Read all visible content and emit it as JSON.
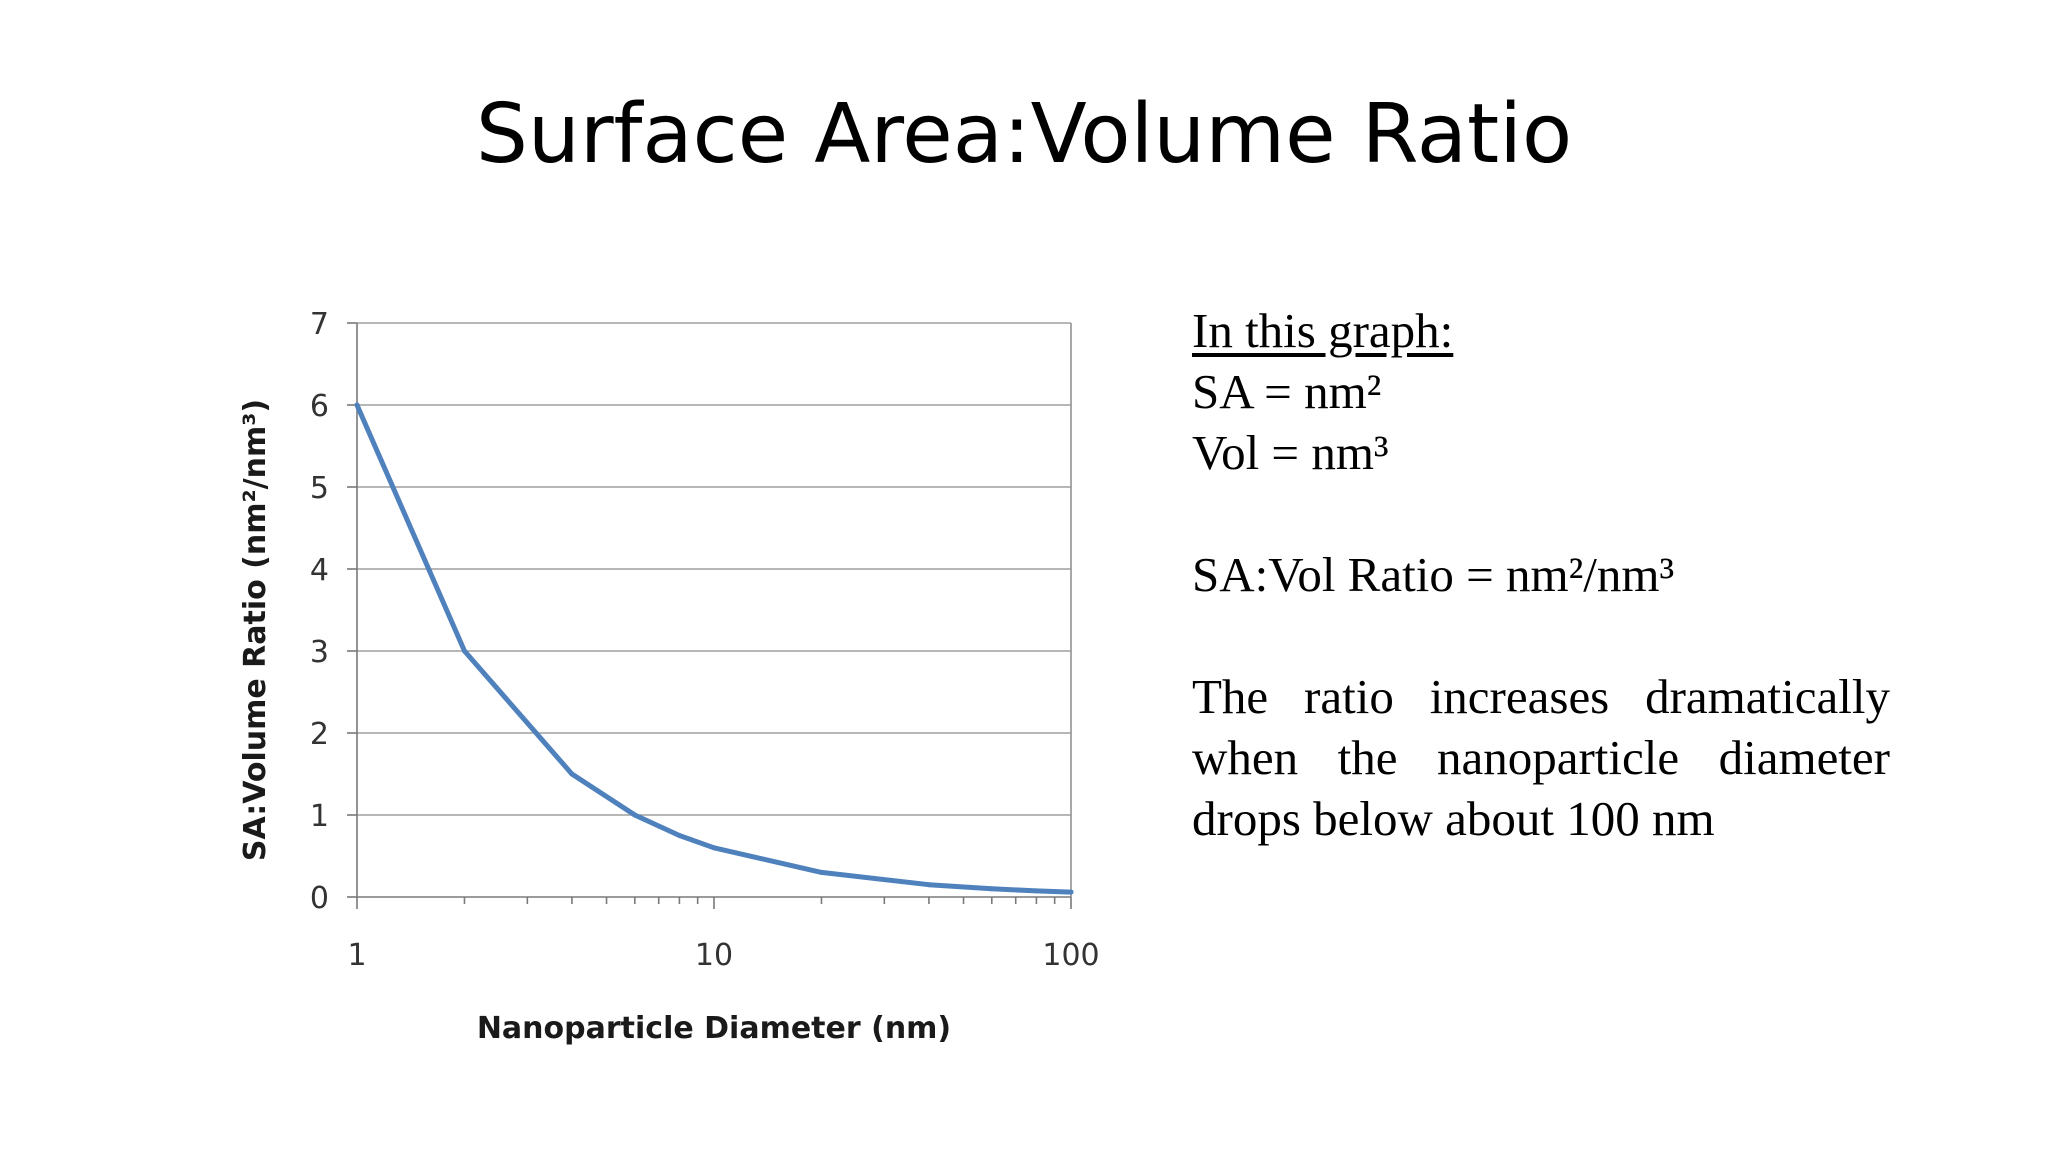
{
  "slide": {
    "title": "Surface Area:Volume Ratio"
  },
  "notes": {
    "heading": "In this graph:",
    "sa_line": "SA = nm²",
    "vol_line": "Vol = nm³",
    "ratio_line": "SA:Vol Ratio = nm²/nm³",
    "paragraph": "The ratio increases dramatically when the nanoparticle diameter drops below about 100 nm"
  },
  "chart_data": {
    "type": "line",
    "title": "",
    "xlabel": "Nanoparticle Diameter (nm)",
    "ylabel": "SA:Volume Ratio (nm²/nm³)",
    "x_scale": "log",
    "xlim": [
      1,
      100
    ],
    "ylim": [
      0,
      7
    ],
    "x_ticks": [
      1,
      10,
      100
    ],
    "y_ticks": [
      0,
      1,
      2,
      3,
      4,
      5,
      6,
      7
    ],
    "grid": "horizontal",
    "legend": "none",
    "line_color": "#4f81bd",
    "series": [
      {
        "x": [
          1,
          2,
          4,
          6,
          8,
          10,
          20,
          40,
          60,
          80,
          100
        ],
        "values": [
          6,
          3,
          1.5,
          1,
          0.75,
          0.6,
          0.3,
          0.15,
          0.1,
          0.075,
          0.06
        ]
      }
    ]
  }
}
